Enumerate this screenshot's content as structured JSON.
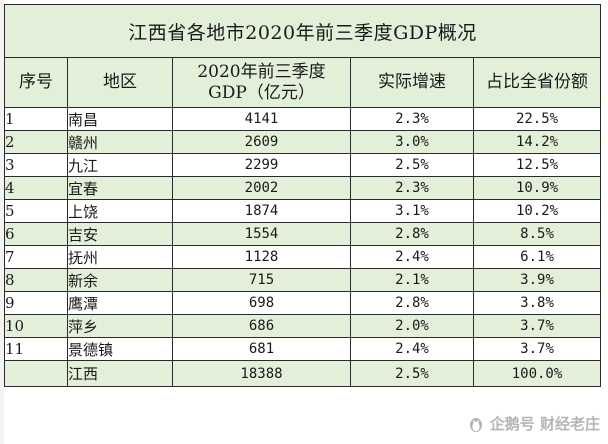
{
  "title": "江西省各地市2020年前三季度GDP概况",
  "headers": {
    "index": "序号",
    "region": "地区",
    "gdp_line1": "2020年前三季度",
    "gdp_line2": "GDP（亿元）",
    "growth": "实际增速",
    "share": "占比全省份额"
  },
  "rows": [
    {
      "index": "1",
      "region": "南昌",
      "gdp": "4141",
      "growth": "2.3%",
      "share": "22.5%"
    },
    {
      "index": "2",
      "region": "赣州",
      "gdp": "2609",
      "growth": "3.0%",
      "share": "14.2%"
    },
    {
      "index": "3",
      "region": "九江",
      "gdp": "2299",
      "growth": "2.5%",
      "share": "12.5%"
    },
    {
      "index": "4",
      "region": "宜春",
      "gdp": "2002",
      "growth": "2.3%",
      "share": "10.9%"
    },
    {
      "index": "5",
      "region": "上饶",
      "gdp": "1874",
      "growth": "3.1%",
      "share": "10.2%"
    },
    {
      "index": "6",
      "region": "吉安",
      "gdp": "1554",
      "growth": "2.8%",
      "share": "8.5%"
    },
    {
      "index": "7",
      "region": "抚州",
      "gdp": "1128",
      "growth": "2.4%",
      "share": "6.1%"
    },
    {
      "index": "8",
      "region": "新余",
      "gdp": "715",
      "growth": "2.1%",
      "share": "3.9%"
    },
    {
      "index": "9",
      "region": "鹰潭",
      "gdp": "698",
      "growth": "2.8%",
      "share": "3.8%"
    },
    {
      "index": "10",
      "region": "萍乡",
      "gdp": "686",
      "growth": "2.0%",
      "share": "3.7%"
    },
    {
      "index": "11",
      "region": "景德镇",
      "gdp": "681",
      "growth": "2.4%",
      "share": "3.7%"
    },
    {
      "index": "",
      "region": "江西",
      "gdp": "18388",
      "growth": "2.5%",
      "share": "100.0%"
    }
  ],
  "watermark": {
    "text": "企鹅号 财经老庄",
    "icon": "penguin-logo-icon"
  },
  "colors": {
    "band_green": "#e2efd9",
    "border": "#2b2b2b"
  }
}
